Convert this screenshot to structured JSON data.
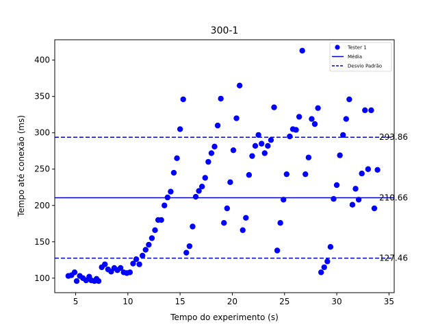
{
  "chart_data": {
    "type": "scatter",
    "title": "300-1",
    "xlabel": "Tempo do experimento (s)",
    "ylabel": "Tempo até conexão (ms)",
    "xlim": [
      3.0,
      35.5
    ],
    "ylim": [
      80,
      428
    ],
    "x_ticks": [
      5,
      10,
      15,
      20,
      25,
      30,
      35
    ],
    "y_ticks": [
      100,
      150,
      200,
      250,
      300,
      350,
      400
    ],
    "grid": false,
    "legend_position": "top-right",
    "colors": {
      "points": "#0000ff",
      "lines": "#0000cc"
    },
    "series": [
      {
        "name": "Tester 1",
        "points": [
          [
            4.3,
            103
          ],
          [
            4.6,
            104
          ],
          [
            4.9,
            108
          ],
          [
            5.1,
            96
          ],
          [
            5.4,
            103
          ],
          [
            5.7,
            100
          ],
          [
            6.0,
            97
          ],
          [
            6.3,
            102
          ],
          [
            6.5,
            97
          ],
          [
            6.8,
            96
          ],
          [
            7.0,
            99
          ],
          [
            7.2,
            96
          ],
          [
            7.5,
            115
          ],
          [
            7.8,
            119
          ],
          [
            8.1,
            112
          ],
          [
            8.4,
            109
          ],
          [
            8.7,
            114
          ],
          [
            9.0,
            111
          ],
          [
            9.3,
            114
          ],
          [
            9.6,
            108
          ],
          [
            9.9,
            107
          ],
          [
            10.2,
            108
          ],
          [
            10.5,
            120
          ],
          [
            10.8,
            126
          ],
          [
            11.1,
            119
          ],
          [
            11.4,
            131
          ],
          [
            11.7,
            139
          ],
          [
            12.0,
            146
          ],
          [
            12.3,
            155
          ],
          [
            12.6,
            166
          ],
          [
            12.9,
            180
          ],
          [
            13.2,
            180
          ],
          [
            13.5,
            200
          ],
          [
            13.8,
            211
          ],
          [
            14.1,
            219
          ],
          [
            14.4,
            245
          ],
          [
            14.7,
            265
          ],
          [
            15.0,
            305
          ],
          [
            15.3,
            346
          ],
          [
            15.6,
            135
          ],
          [
            15.9,
            144
          ],
          [
            16.2,
            171
          ],
          [
            16.5,
            212
          ],
          [
            16.8,
            220
          ],
          [
            17.1,
            226
          ],
          [
            17.4,
            238
          ],
          [
            17.7,
            260
          ],
          [
            18.0,
            272
          ],
          [
            18.3,
            281
          ],
          [
            18.6,
            310
          ],
          [
            18.9,
            347
          ],
          [
            19.2,
            176
          ],
          [
            19.5,
            196
          ],
          [
            19.8,
            232
          ],
          [
            20.1,
            276
          ],
          [
            20.4,
            320
          ],
          [
            20.7,
            365
          ],
          [
            21.0,
            166
          ],
          [
            21.3,
            183
          ],
          [
            21.6,
            242
          ],
          [
            21.9,
            268
          ],
          [
            22.2,
            282
          ],
          [
            22.5,
            297
          ],
          [
            22.8,
            285
          ],
          [
            23.1,
            272
          ],
          [
            23.4,
            282
          ],
          [
            23.7,
            290
          ],
          [
            24.0,
            335
          ],
          [
            24.3,
            138
          ],
          [
            24.6,
            176
          ],
          [
            24.9,
            208
          ],
          [
            25.2,
            243
          ],
          [
            25.5,
            295
          ],
          [
            25.8,
            305
          ],
          [
            26.1,
            304
          ],
          [
            26.4,
            322
          ],
          [
            26.7,
            413
          ],
          [
            27.0,
            243
          ],
          [
            27.3,
            266
          ],
          [
            27.6,
            319
          ],
          [
            27.9,
            312
          ],
          [
            28.2,
            334
          ],
          [
            28.5,
            108
          ],
          [
            28.8,
            115
          ],
          [
            29.1,
            123
          ],
          [
            29.4,
            143
          ],
          [
            29.7,
            209
          ],
          [
            30.0,
            228
          ],
          [
            30.3,
            269
          ],
          [
            30.6,
            297
          ],
          [
            30.9,
            319
          ],
          [
            31.2,
            346
          ],
          [
            31.5,
            201
          ],
          [
            31.8,
            223
          ],
          [
            32.1,
            208
          ],
          [
            32.4,
            244
          ],
          [
            32.7,
            331
          ],
          [
            33.0,
            250
          ],
          [
            33.3,
            331
          ],
          [
            33.6,
            196
          ],
          [
            33.9,
            249
          ]
        ]
      }
    ],
    "reference_lines": [
      {
        "legend": "Média",
        "value": 210.66,
        "label": "210.66",
        "style": "solid"
      },
      {
        "legend": "Desvio Padrão",
        "value": 293.86,
        "label": "293.86",
        "style": "dashed"
      },
      {
        "legend": "Desvio Padrão",
        "value": 127.46,
        "label": "127.46",
        "style": "dashed"
      }
    ],
    "legend": [
      {
        "label": "Tester 1",
        "marker": "circle"
      },
      {
        "label": "Média",
        "marker": "solid-line"
      },
      {
        "label": "Desvio Padrão",
        "marker": "dashed-line"
      }
    ]
  }
}
